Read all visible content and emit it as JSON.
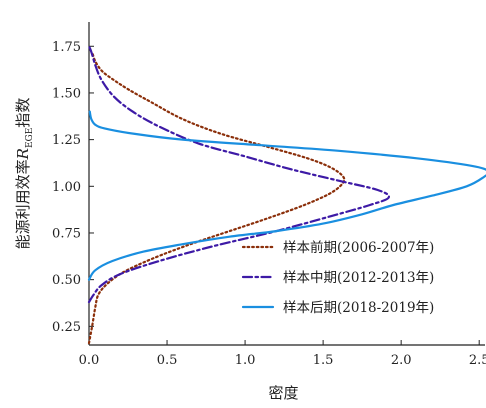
{
  "chart_data": {
    "type": "line",
    "title": "",
    "xlabel": "密度",
    "ylabel_main": "能源利用效率",
    "ylabel_symbol": "R",
    "ylabel_subscript": "EGE",
    "ylabel_suffix": "指数",
    "xlim": [
      0,
      2.55
    ],
    "ylim": [
      0.15,
      1.88
    ],
    "xticks": [
      0,
      0.5,
      1.0,
      1.5,
      2.0,
      2.5
    ],
    "xtick_labels": [
      "0.0",
      "0.5",
      "1.0",
      "1.5",
      "2.0",
      "2.5"
    ],
    "yticks": [
      0.25,
      0.5,
      0.75,
      1.0,
      1.25,
      1.5,
      1.75
    ],
    "ytick_labels": [
      "0.25",
      "0.50",
      "0.75",
      "1.00",
      "1.25",
      "1.50",
      "1.75"
    ],
    "grid": false,
    "legend_position": "bottom-right",
    "series": [
      {
        "name": "样本前期(2006-2007年)",
        "color": "#8b2f0a",
        "style": "dotted",
        "points": [
          [
            0.0,
            0.16
          ],
          [
            0.02,
            0.25
          ],
          [
            0.04,
            0.35
          ],
          [
            0.06,
            0.42
          ],
          [
            0.12,
            0.48
          ],
          [
            0.22,
            0.54
          ],
          [
            0.4,
            0.61
          ],
          [
            0.65,
            0.69
          ],
          [
            0.9,
            0.76
          ],
          [
            1.15,
            0.83
          ],
          [
            1.38,
            0.9
          ],
          [
            1.54,
            0.96
          ],
          [
            1.62,
            1.01
          ],
          [
            1.63,
            1.05
          ],
          [
            1.55,
            1.1
          ],
          [
            1.4,
            1.15
          ],
          [
            1.15,
            1.21
          ],
          [
            0.85,
            1.28
          ],
          [
            0.6,
            1.36
          ],
          [
            0.4,
            1.45
          ],
          [
            0.25,
            1.52
          ],
          [
            0.14,
            1.58
          ],
          [
            0.08,
            1.62
          ],
          [
            0.04,
            1.67
          ],
          [
            0.02,
            1.72
          ]
        ]
      },
      {
        "name": "样本中期(2012-2013年)",
        "color": "#3d1aa6",
        "style": "dashdot",
        "points": [
          [
            0.0,
            0.38
          ],
          [
            0.03,
            0.42
          ],
          [
            0.08,
            0.47
          ],
          [
            0.2,
            0.53
          ],
          [
            0.45,
            0.6
          ],
          [
            0.8,
            0.68
          ],
          [
            1.2,
            0.76
          ],
          [
            1.55,
            0.84
          ],
          [
            1.8,
            0.9
          ],
          [
            1.92,
            0.94
          ],
          [
            1.85,
            0.98
          ],
          [
            1.6,
            1.03
          ],
          [
            1.3,
            1.09
          ],
          [
            1.0,
            1.16
          ],
          [
            0.7,
            1.23
          ],
          [
            0.45,
            1.32
          ],
          [
            0.28,
            1.4
          ],
          [
            0.16,
            1.48
          ],
          [
            0.08,
            1.57
          ],
          [
            0.04,
            1.65
          ],
          [
            0.015,
            1.72
          ],
          [
            0.0,
            1.75
          ]
        ]
      },
      {
        "name": "样本后期(2018-2019年)",
        "color": "#1a8fe0",
        "style": "solid",
        "points": [
          [
            0.0,
            0.5
          ],
          [
            0.04,
            0.55
          ],
          [
            0.15,
            0.6
          ],
          [
            0.35,
            0.65
          ],
          [
            0.6,
            0.69
          ],
          [
            0.9,
            0.73
          ],
          [
            1.2,
            0.76
          ],
          [
            1.5,
            0.8
          ],
          [
            1.75,
            0.85
          ],
          [
            1.95,
            0.9
          ],
          [
            2.2,
            0.95
          ],
          [
            2.42,
            1.0
          ],
          [
            2.53,
            1.05
          ],
          [
            2.56,
            1.08
          ],
          [
            2.45,
            1.11
          ],
          [
            2.1,
            1.15
          ],
          [
            1.6,
            1.19
          ],
          [
            1.1,
            1.22
          ],
          [
            0.6,
            1.25
          ],
          [
            0.3,
            1.28
          ],
          [
            0.1,
            1.31
          ],
          [
            0.04,
            1.33
          ],
          [
            0.015,
            1.36
          ],
          [
            0.005,
            1.4
          ]
        ]
      }
    ]
  }
}
